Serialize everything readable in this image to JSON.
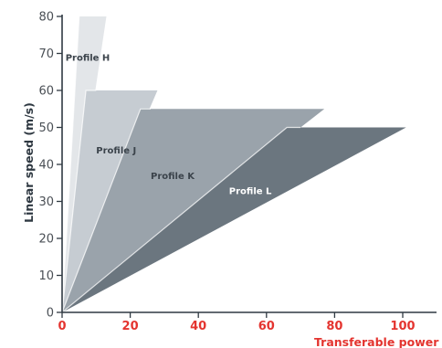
{
  "colors": {
    "axis": "#2f3942",
    "x_accent": "#e4342f",
    "tick_y_text": "#4a4f55",
    "profile_H": "#e3e6e9",
    "profile_J": "#c6ccd2",
    "profile_K": "#9aa3ab",
    "profile_L": "#6b767f",
    "edge_line": "#ffffff"
  },
  "chart_data": {
    "type": "area",
    "xlabel": "Transferable power (kW)",
    "ylabel": "Linear speed (m/s)",
    "xlim": [
      0,
      110
    ],
    "ylim": [
      0,
      80
    ],
    "x_ticks": [
      "0",
      "20",
      "40",
      "60",
      "80",
      "100"
    ],
    "x_tick_values": [
      0,
      20,
      40,
      60,
      80,
      100
    ],
    "y_ticks": [
      "0",
      "10",
      "20",
      "30",
      "40",
      "50",
      "60",
      "70",
      "80"
    ],
    "y_tick_values": [
      0,
      10,
      20,
      30,
      40,
      50,
      60,
      70,
      80
    ],
    "grid": false,
    "series": [
      {
        "name": "Profile H",
        "color_key": "profile_H",
        "region": [
          [
            0,
            0
          ],
          [
            13,
            80
          ],
          [
            5,
            80
          ]
        ],
        "inner_edge": [
          [
            0,
            0
          ],
          [
            5,
            80
          ]
        ],
        "label_at": [
          1,
          68
        ]
      },
      {
        "name": "Profile J",
        "color_key": "profile_J",
        "region": [
          [
            0,
            0
          ],
          [
            7,
            60
          ],
          [
            28,
            60
          ]
        ],
        "inner_edge": [
          [
            0,
            0
          ],
          [
            7,
            60
          ],
          [
            10,
            60
          ]
        ],
        "label_at": [
          10,
          43
        ]
      },
      {
        "name": "Profile K",
        "color_key": "profile_K",
        "region": [
          [
            0,
            0
          ],
          [
            23,
            55
          ],
          [
            77,
            55
          ]
        ],
        "inner_edge": [
          [
            0,
            0
          ],
          [
            23,
            55
          ],
          [
            26,
            55
          ]
        ],
        "label_at": [
          26,
          36
        ]
      },
      {
        "name": "Profile L",
        "color_key": "profile_L",
        "region": [
          [
            0,
            0
          ],
          [
            66,
            50
          ],
          [
            101,
            50
          ]
        ],
        "inner_edge": [
          [
            0,
            0
          ],
          [
            66,
            50
          ],
          [
            70,
            50
          ]
        ],
        "label_at": [
          49,
          32
        ],
        "label_light": true
      }
    ]
  }
}
